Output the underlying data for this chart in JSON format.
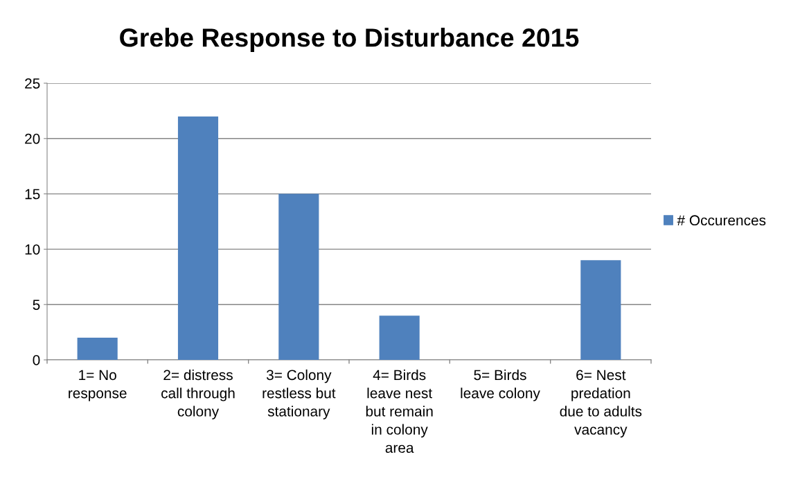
{
  "chart_data": {
    "type": "bar",
    "title": "Grebe Response to Disturbance 2015",
    "categories": [
      "1= No\nresponse",
      "2= distress\ncall through\ncolony",
      "3= Colony\nrestless but\nstationary",
      "4= Birds\nleave nest\nbut remain\nin colony\narea",
      "5= Birds\nleave colony",
      "6= Nest\npredation\ndue to adults\nvacancy"
    ],
    "series": [
      {
        "name": "# Occurences",
        "color": "#4f81bd",
        "values": [
          2,
          22,
          15,
          4,
          0,
          9
        ]
      }
    ],
    "ylim": [
      0,
      25
    ],
    "yticks": [
      0,
      5,
      10,
      15,
      20,
      25
    ],
    "grid": "y",
    "legend": "right"
  }
}
